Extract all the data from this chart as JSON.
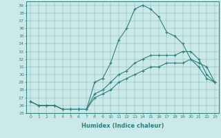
{
  "title": "",
  "xlabel": "Humidex (Indice chaleur)",
  "ylabel": "",
  "bg_color": "#cce9e9",
  "line_color": "#2d7e7e",
  "xlim": [
    -0.5,
    23.5
  ],
  "ylim": [
    25,
    39.5
  ],
  "xticks": [
    0,
    1,
    2,
    3,
    4,
    5,
    6,
    7,
    8,
    9,
    10,
    11,
    12,
    13,
    14,
    15,
    16,
    17,
    18,
    19,
    20,
    21,
    22,
    23
  ],
  "yticks": [
    25,
    26,
    27,
    28,
    29,
    30,
    31,
    32,
    33,
    34,
    35,
    36,
    37,
    38,
    39
  ],
  "series": [
    {
      "x": [
        0,
        1,
        2,
        3,
        4,
        5,
        6,
        7,
        8,
        9,
        10,
        11,
        12,
        13,
        14,
        15,
        16,
        17,
        18,
        19,
        20,
        21,
        22,
        23
      ],
      "y": [
        26.5,
        26.0,
        26.0,
        26.0,
        25.5,
        25.5,
        25.5,
        25.5,
        29.0,
        29.5,
        31.5,
        34.5,
        36.0,
        38.5,
        39.0,
        38.5,
        37.5,
        35.5,
        35.0,
        34.0,
        32.0,
        31.5,
        31.0,
        29.0
      ]
    },
    {
      "x": [
        0,
        1,
        2,
        3,
        4,
        5,
        6,
        7,
        8,
        9,
        10,
        11,
        12,
        13,
        14,
        15,
        16,
        17,
        18,
        19,
        20,
        21,
        22,
        23
      ],
      "y": [
        26.5,
        26.0,
        26.0,
        26.0,
        25.5,
        25.5,
        25.5,
        25.5,
        27.5,
        28.0,
        29.0,
        30.0,
        30.5,
        31.5,
        32.0,
        32.5,
        32.5,
        32.5,
        32.5,
        33.0,
        33.0,
        32.0,
        30.0,
        29.0
      ]
    },
    {
      "x": [
        0,
        1,
        2,
        3,
        4,
        5,
        6,
        7,
        8,
        9,
        10,
        11,
        12,
        13,
        14,
        15,
        16,
        17,
        18,
        19,
        20,
        21,
        22,
        23
      ],
      "y": [
        26.5,
        26.0,
        26.0,
        26.0,
        25.5,
        25.5,
        25.5,
        25.5,
        27.0,
        27.5,
        28.0,
        29.0,
        29.5,
        30.0,
        30.5,
        31.0,
        31.0,
        31.5,
        31.5,
        31.5,
        32.0,
        31.0,
        29.5,
        29.0
      ]
    }
  ],
  "xlabel_fontsize": 6,
  "tick_fontsize": 4.5,
  "marker_size": 2.5,
  "linewidth": 0.8
}
